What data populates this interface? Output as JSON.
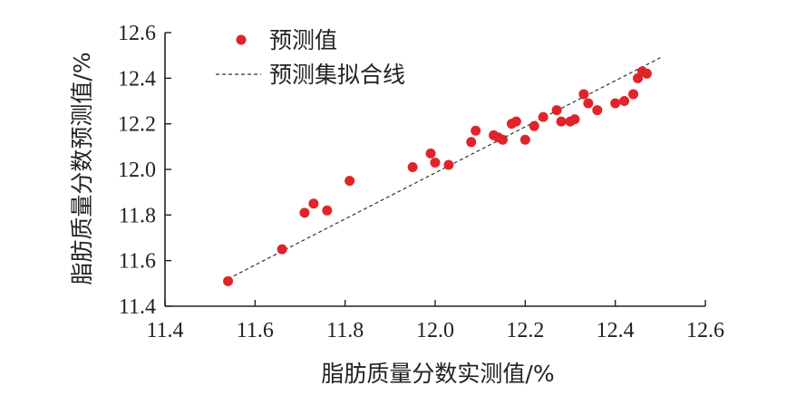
{
  "chart_data": {
    "type": "scatter",
    "title": "",
    "xlabel": "脂肪质量分数实测值/%",
    "ylabel": "脂肪质量分数预测值/%",
    "xlim": [
      11.4,
      12.6
    ],
    "ylim": [
      11.4,
      12.6
    ],
    "xticks": [
      "11.4",
      "11.6",
      "11.8",
      "12.0",
      "12.2",
      "12.4",
      "12.6"
    ],
    "yticks": [
      "11.4",
      "11.6",
      "11.8",
      "12.0",
      "12.2",
      "12.4",
      "12.6"
    ],
    "grid": false,
    "legend_position": "top-left",
    "series": [
      {
        "name": "预测值",
        "color": "#e0242a",
        "marker": "circle",
        "x": [
          11.54,
          11.66,
          11.71,
          11.73,
          11.76,
          11.81,
          11.95,
          11.99,
          12.0,
          12.03,
          12.08,
          12.09,
          12.13,
          12.14,
          12.15,
          12.17,
          12.18,
          12.2,
          12.22,
          12.24,
          12.27,
          12.28,
          12.3,
          12.31,
          12.33,
          12.34,
          12.36,
          12.4,
          12.42,
          12.44,
          12.45,
          12.46,
          12.47
        ],
        "y": [
          11.51,
          11.65,
          11.81,
          11.85,
          11.82,
          11.95,
          12.01,
          12.07,
          12.03,
          12.02,
          12.12,
          12.17,
          12.15,
          12.14,
          12.13,
          12.2,
          12.21,
          12.13,
          12.19,
          12.23,
          12.26,
          12.21,
          12.21,
          12.22,
          12.33,
          12.29,
          12.26,
          12.29,
          12.3,
          12.33,
          12.4,
          12.43,
          12.42
        ]
      }
    ],
    "fit_line": {
      "name": "预测集拟合线",
      "style": "dashed",
      "color": "#333333",
      "x": [
        11.54,
        12.5
      ],
      "y": [
        11.52,
        12.49
      ]
    }
  }
}
